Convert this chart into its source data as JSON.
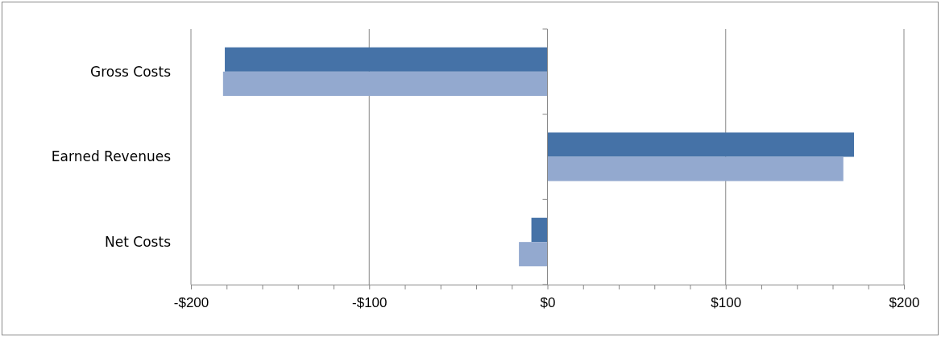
{
  "chart_data": {
    "type": "bar",
    "orientation": "horizontal",
    "categories": [
      "Gross Costs",
      "Earned Revenues",
      "Net Costs"
    ],
    "series": [
      {
        "color": "#4572a7",
        "values": [
          -181,
          172,
          -9
        ]
      },
      {
        "color": "#93a9cf",
        "values": [
          -182,
          166,
          -16
        ]
      }
    ],
    "xlim": [
      -200,
      200
    ],
    "xticks": [
      {
        "value": -200,
        "label": "-$200"
      },
      {
        "value": -180,
        "label": null
      },
      {
        "value": -160,
        "label": null
      },
      {
        "value": -140,
        "label": null
      },
      {
        "value": -120,
        "label": null
      },
      {
        "value": -100,
        "label": "-$100"
      },
      {
        "value": -80,
        "label": null
      },
      {
        "value": -60,
        "label": null
      },
      {
        "value": -40,
        "label": null
      },
      {
        "value": -20,
        "label": null
      },
      {
        "value": 0,
        "label": "$0"
      },
      {
        "value": 20,
        "label": null
      },
      {
        "value": 40,
        "label": null
      },
      {
        "value": 60,
        "label": null
      },
      {
        "value": 80,
        "label": null
      },
      {
        "value": 100,
        "label": "$100"
      },
      {
        "value": 120,
        "label": null
      },
      {
        "value": 140,
        "label": null
      },
      {
        "value": 160,
        "label": null
      },
      {
        "value": 180,
        "label": null
      },
      {
        "value": 200,
        "label": "$200"
      }
    ],
    "grid": "x"
  }
}
